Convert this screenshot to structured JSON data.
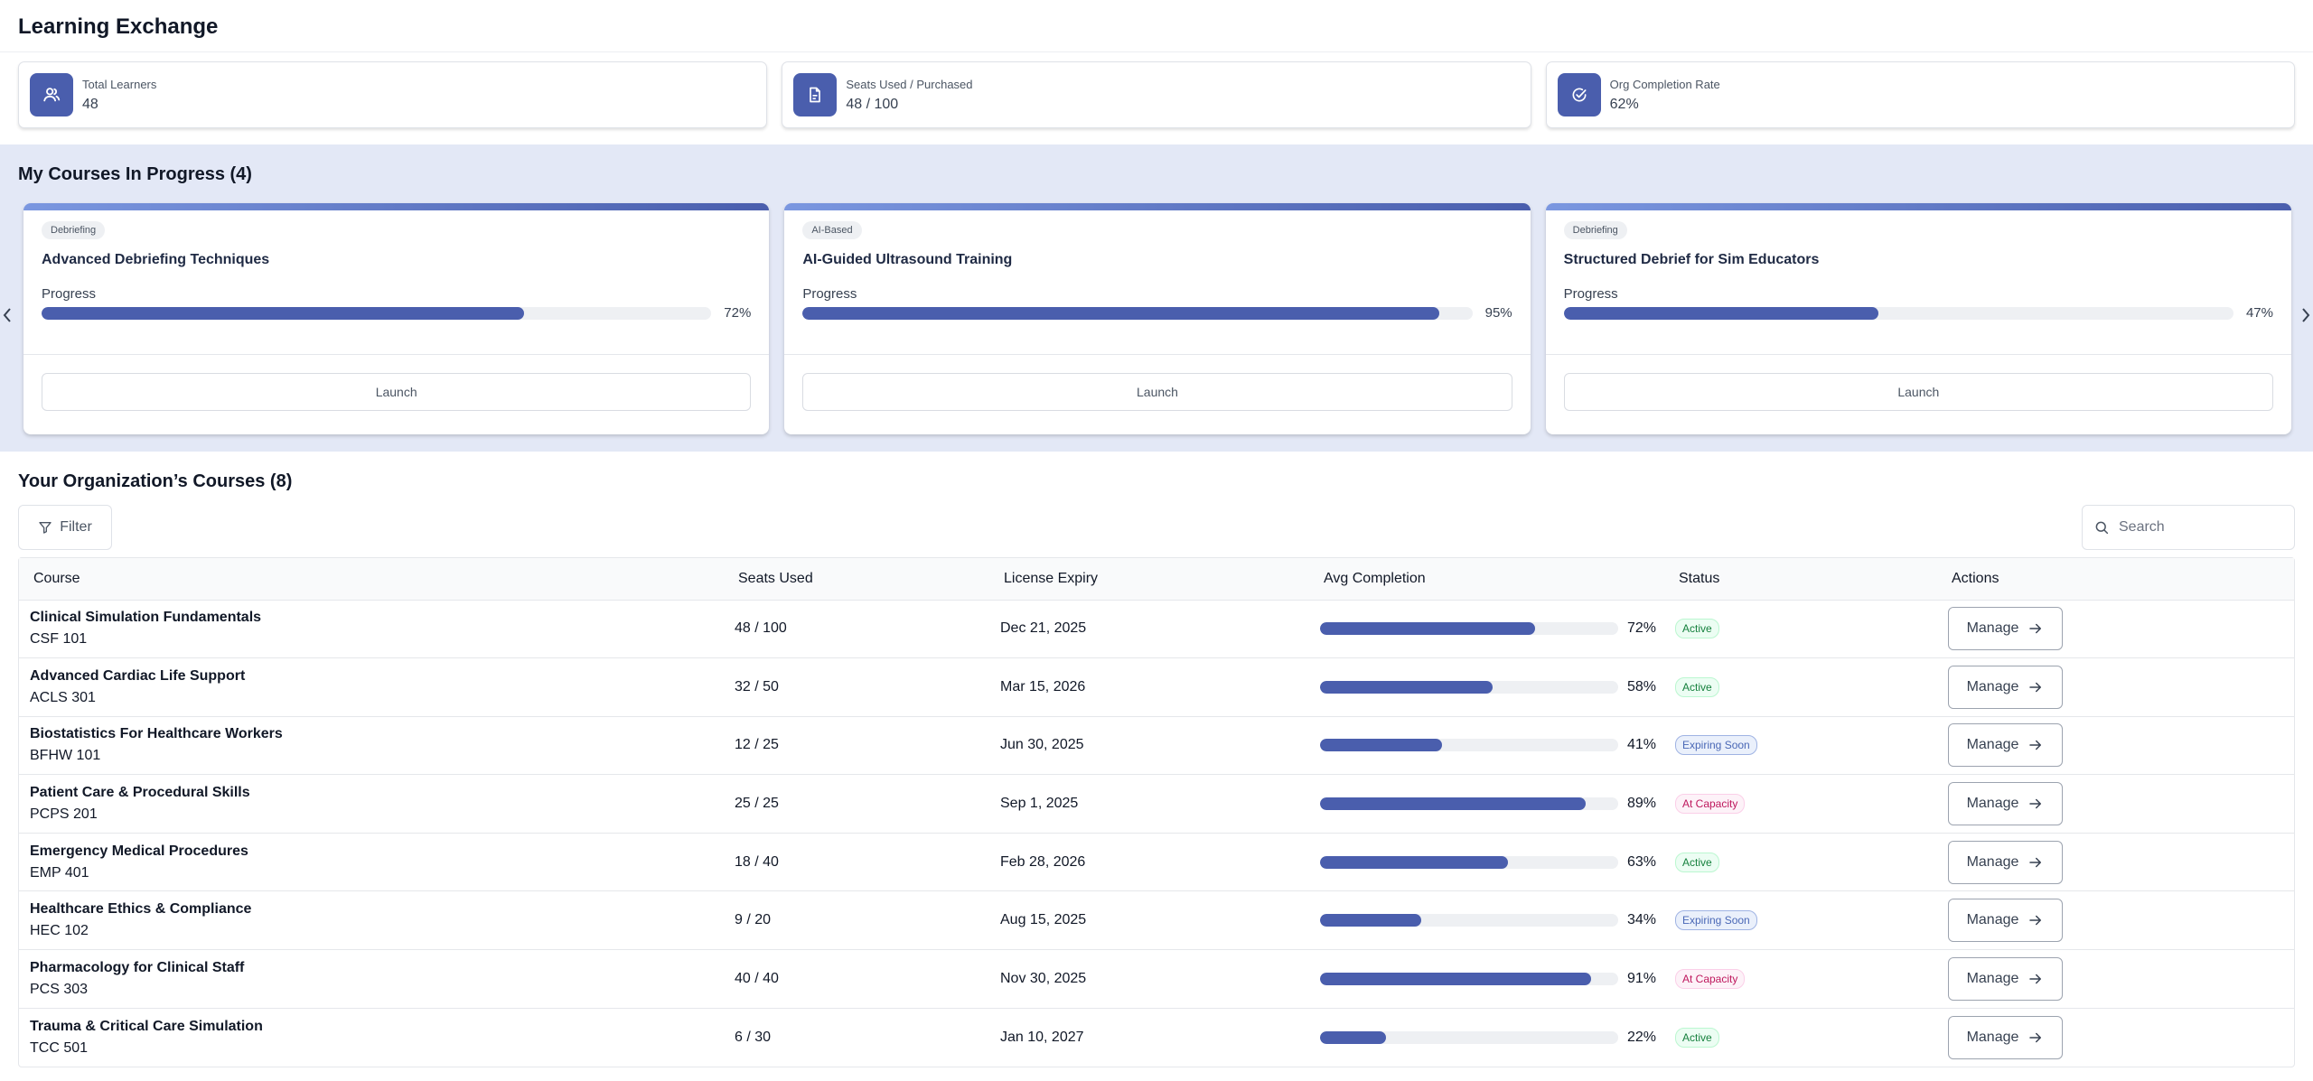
{
  "app_title": "Learning Exchange",
  "stats": [
    {
      "icon": "users-icon",
      "label": "Total Learners",
      "value": "48"
    },
    {
      "icon": "document-icon",
      "label": "Seats Used / Purchased",
      "value": "48 / 100"
    },
    {
      "icon": "check-circle-icon",
      "label": "Org Completion Rate",
      "value": "62%"
    }
  ],
  "in_progress": {
    "title": "My Courses In Progress (4)",
    "progress_label": "Progress",
    "launch_label": "Launch",
    "cards": [
      {
        "tag": "Debriefing",
        "title": "Advanced Debriefing Techniques",
        "progress": 72,
        "progress_text": "72%"
      },
      {
        "tag": "AI-Based",
        "title": "AI-Guided Ultrasound Training",
        "progress": 95,
        "progress_text": "95%"
      },
      {
        "tag": "Debriefing",
        "title": "Structured Debrief for Sim Educators",
        "progress": 47,
        "progress_text": "47%"
      }
    ]
  },
  "org_courses": {
    "title": "Your Organization’s Courses (8)",
    "filter_label": "Filter",
    "search_placeholder": "Search",
    "columns": [
      "Course",
      "Seats Used",
      "License Expiry",
      "Avg Completion",
      "Status",
      "Actions"
    ],
    "manage_label": "Manage",
    "rows": [
      {
        "name": "Clinical Simulation Fundamentals",
        "code": "CSF 101",
        "seats": "48 / 100",
        "expiry": "Dec 21, 2025",
        "completion": 72,
        "completion_text": "72%",
        "status": "Active",
        "status_type": "active"
      },
      {
        "name": "Advanced Cardiac Life Support",
        "code": "ACLS 301",
        "seats": "32 / 50",
        "expiry": "Mar 15, 2026",
        "completion": 58,
        "completion_text": "58%",
        "status": "Active",
        "status_type": "active"
      },
      {
        "name": "Biostatistics For Healthcare Workers",
        "code": "BFHW 101",
        "seats": "12 / 25",
        "expiry": "Jun 30, 2025",
        "completion": 41,
        "completion_text": "41%",
        "status": "Expiring Soon",
        "status_type": "expiring"
      },
      {
        "name": "Patient Care & Procedural Skills",
        "code": "PCPS 201",
        "seats": "25 / 25",
        "expiry": "Sep 1, 2025",
        "completion": 89,
        "completion_text": "89%",
        "status": "At Capacity",
        "status_type": "capacity"
      },
      {
        "name": "Emergency Medical Procedures",
        "code": "EMP 401",
        "seats": "18 / 40",
        "expiry": "Feb 28, 2026",
        "completion": 63,
        "completion_text": "63%",
        "status": "Active",
        "status_type": "active"
      },
      {
        "name": "Healthcare Ethics & Compliance",
        "code": "HEC 102",
        "seats": "9 / 20",
        "expiry": "Aug 15, 2025",
        "completion": 34,
        "completion_text": "34%",
        "status": "Expiring Soon",
        "status_type": "expiring"
      },
      {
        "name": "Pharmacology for Clinical Staff",
        "code": "PCS 303",
        "seats": "40 / 40",
        "expiry": "Nov 30, 2025",
        "completion": 91,
        "completion_text": "91%",
        "status": "At Capacity",
        "status_type": "capacity"
      },
      {
        "name": "Trauma & Critical Care Simulation",
        "code": "TCC 501",
        "seats": "6 / 30",
        "expiry": "Jan 10, 2027",
        "completion": 22,
        "completion_text": "22%",
        "status": "Active",
        "status_type": "active"
      }
    ]
  },
  "colors": {
    "accent": "#4a5ead",
    "section_bg": "#e3e8f6"
  }
}
